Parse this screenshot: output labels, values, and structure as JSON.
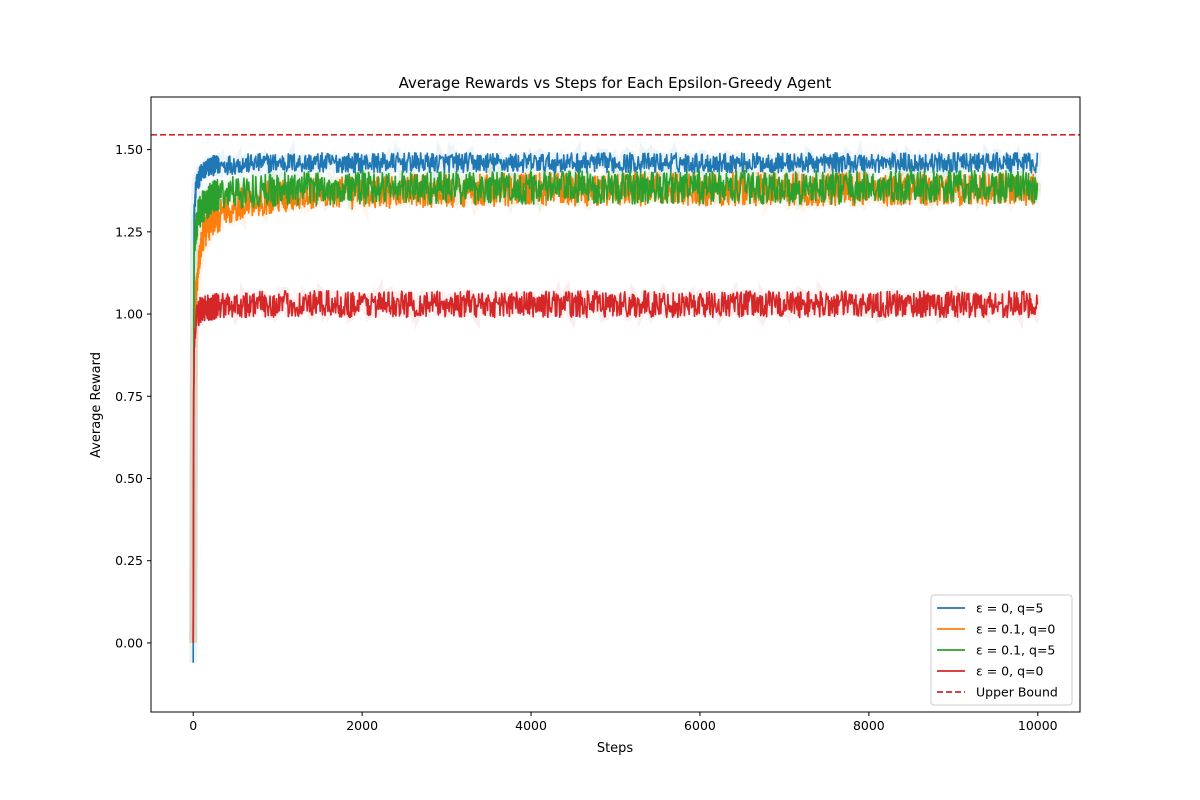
{
  "chart_data": {
    "type": "line",
    "title": "Average Rewards vs Steps for Each Epsilon-Greedy Agent",
    "xlabel": "Steps",
    "ylabel": "Average Reward",
    "xlim": [
      -500,
      10500
    ],
    "ylim": [
      -0.21,
      1.66
    ],
    "xticks": [
      0,
      2000,
      4000,
      6000,
      8000,
      10000
    ],
    "yticks": [
      0.0,
      0.25,
      0.5,
      0.75,
      1.0,
      1.25,
      1.5
    ],
    "xtick_labels": [
      "0",
      "2000",
      "4000",
      "6000",
      "8000",
      "10000"
    ],
    "ytick_labels": [
      "0.00",
      "0.25",
      "0.50",
      "0.75",
      "1.00",
      "1.25",
      "1.50"
    ],
    "grid": false,
    "legend_position": "lower-right",
    "series": [
      {
        "name": "ε = 0, q=5",
        "color": "#1f77b4",
        "style": "solid",
        "x": [
          0,
          10,
          30,
          60,
          100,
          200,
          400,
          1000,
          2000,
          4000,
          6000,
          8000,
          10000
        ],
        "y": [
          -0.06,
          1.3,
          1.38,
          1.41,
          1.43,
          1.45,
          1.455,
          1.46,
          1.46,
          1.46,
          1.46,
          1.46,
          1.46
        ],
        "noise": 0.018
      },
      {
        "name": "ε = 0.1, q=0",
        "color": "#ff7f0e",
        "style": "solid",
        "x": [
          0,
          10,
          30,
          60,
          100,
          200,
          400,
          700,
          1000,
          2000,
          4000,
          6000,
          8000,
          10000
        ],
        "y": [
          0.0,
          0.95,
          1.05,
          1.15,
          1.22,
          1.28,
          1.32,
          1.345,
          1.36,
          1.37,
          1.38,
          1.38,
          1.38,
          1.38
        ],
        "noise": 0.03
      },
      {
        "name": "ε = 0.1, q=5",
        "color": "#2ca02c",
        "style": "solid",
        "x": [
          0,
          10,
          30,
          60,
          100,
          200,
          400,
          1000,
          2000,
          4000,
          6000,
          8000,
          10000
        ],
        "y": [
          0.0,
          1.2,
          1.26,
          1.3,
          1.32,
          1.35,
          1.37,
          1.38,
          1.385,
          1.385,
          1.385,
          1.385,
          1.385
        ],
        "noise": 0.03
      },
      {
        "name": "ε = 0, q=0",
        "color": "#d62728",
        "style": "solid",
        "x": [
          0,
          5,
          15,
          40,
          80,
          200,
          500,
          1000,
          2000,
          4000,
          6000,
          8000,
          10000
        ],
        "y": [
          0.0,
          0.75,
          0.92,
          0.99,
          1.01,
          1.02,
          1.03,
          1.03,
          1.03,
          1.03,
          1.03,
          1.03,
          1.03
        ],
        "noise": 0.024
      }
    ],
    "reference_lines": [
      {
        "name": "Upper Bound",
        "y": 1.545,
        "color": "#d62728",
        "style": "dashed"
      }
    ]
  }
}
